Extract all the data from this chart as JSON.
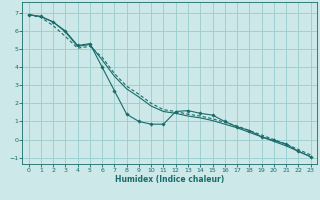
{
  "xlabel": "Humidex (Indice chaleur)",
  "bg_color": "#cce8e8",
  "grid_color": "#99cccc",
  "line_color": "#1a6b6b",
  "xlim": [
    -0.5,
    23.5
  ],
  "ylim": [
    -1.35,
    7.6
  ],
  "xticks": [
    0,
    1,
    2,
    3,
    4,
    5,
    6,
    7,
    8,
    9,
    10,
    11,
    12,
    13,
    14,
    15,
    16,
    17,
    18,
    19,
    20,
    21,
    22,
    23
  ],
  "yticks": [
    -1,
    0,
    1,
    2,
    3,
    4,
    5,
    6,
    7
  ],
  "line1_x": [
    0,
    1,
    2,
    3,
    4,
    5,
    6,
    7,
    8,
    9,
    10,
    11,
    12,
    13,
    14,
    15,
    16,
    17,
    18,
    19,
    20,
    21,
    22,
    23
  ],
  "line1_y": [
    6.9,
    6.8,
    6.5,
    6.0,
    5.2,
    5.3,
    4.0,
    2.7,
    1.4,
    1.0,
    0.85,
    0.85,
    1.55,
    1.6,
    1.45,
    1.35,
    1.0,
    0.7,
    0.5,
    0.15,
    -0.05,
    -0.25,
    -0.65,
    -0.95
  ],
  "line2_x": [
    0,
    1,
    2,
    3,
    4,
    5,
    6,
    7,
    8,
    9,
    10,
    11,
    12,
    13,
    14,
    15,
    16,
    17,
    18,
    19,
    20,
    21,
    22,
    23
  ],
  "line2_y": [
    6.9,
    6.8,
    6.5,
    5.95,
    5.15,
    5.25,
    4.4,
    3.5,
    2.8,
    2.35,
    1.85,
    1.55,
    1.45,
    1.3,
    1.2,
    1.05,
    0.85,
    0.65,
    0.4,
    0.15,
    -0.1,
    -0.35,
    -0.65,
    -0.95
  ],
  "line3_x": [
    0,
    1,
    2,
    3,
    4,
    5,
    6,
    7,
    8,
    9,
    10,
    11,
    12,
    13,
    14,
    15,
    16,
    17,
    18,
    19,
    20,
    21,
    22,
    23
  ],
  "line3_y": [
    6.9,
    6.75,
    6.3,
    5.7,
    5.05,
    5.15,
    4.55,
    3.65,
    2.95,
    2.5,
    2.0,
    1.65,
    1.55,
    1.4,
    1.3,
    1.15,
    0.95,
    0.75,
    0.5,
    0.25,
    0.0,
    -0.25,
    -0.55,
    -0.85
  ]
}
